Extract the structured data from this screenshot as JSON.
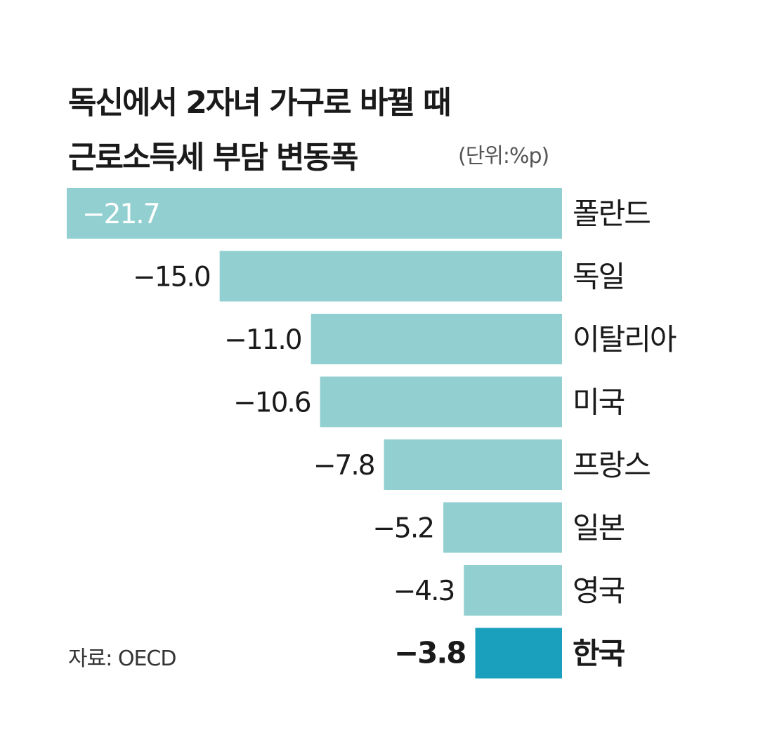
{
  "title_line_1": "독신에서 2자녀 가구로 바뀔 때",
  "title_line_2": "근로소득세 부담 변동폭",
  "unit_note": "(단위:%p)",
  "source_note": "자료: OECD",
  "colors": {
    "bar": "#92cfd0",
    "highlight_bar": "#1a9fbd",
    "text": "#1a1a1a"
  },
  "chart_data": {
    "type": "bar",
    "orientation": "horizontal",
    "title": "독신에서 2자녀 가구로 바뀔 때 근로소득세 부담 변동폭",
    "unit": "%p",
    "categories": [
      "폴란드",
      "독일",
      "이탈리아",
      "미국",
      "프랑스",
      "일본",
      "영국",
      "한국"
    ],
    "values": [
      -21.7,
      -15.0,
      -11.0,
      -10.6,
      -7.8,
      -5.2,
      -4.3,
      -3.8
    ],
    "value_labels": [
      "−21.7",
      "−15.0",
      "−11.0",
      "−10.6",
      "−7.8",
      "−5.2",
      "−4.3",
      "−3.8"
    ],
    "highlight": "한국",
    "xlim": [
      -21.7,
      0
    ],
    "grid": false,
    "legend": "none"
  }
}
